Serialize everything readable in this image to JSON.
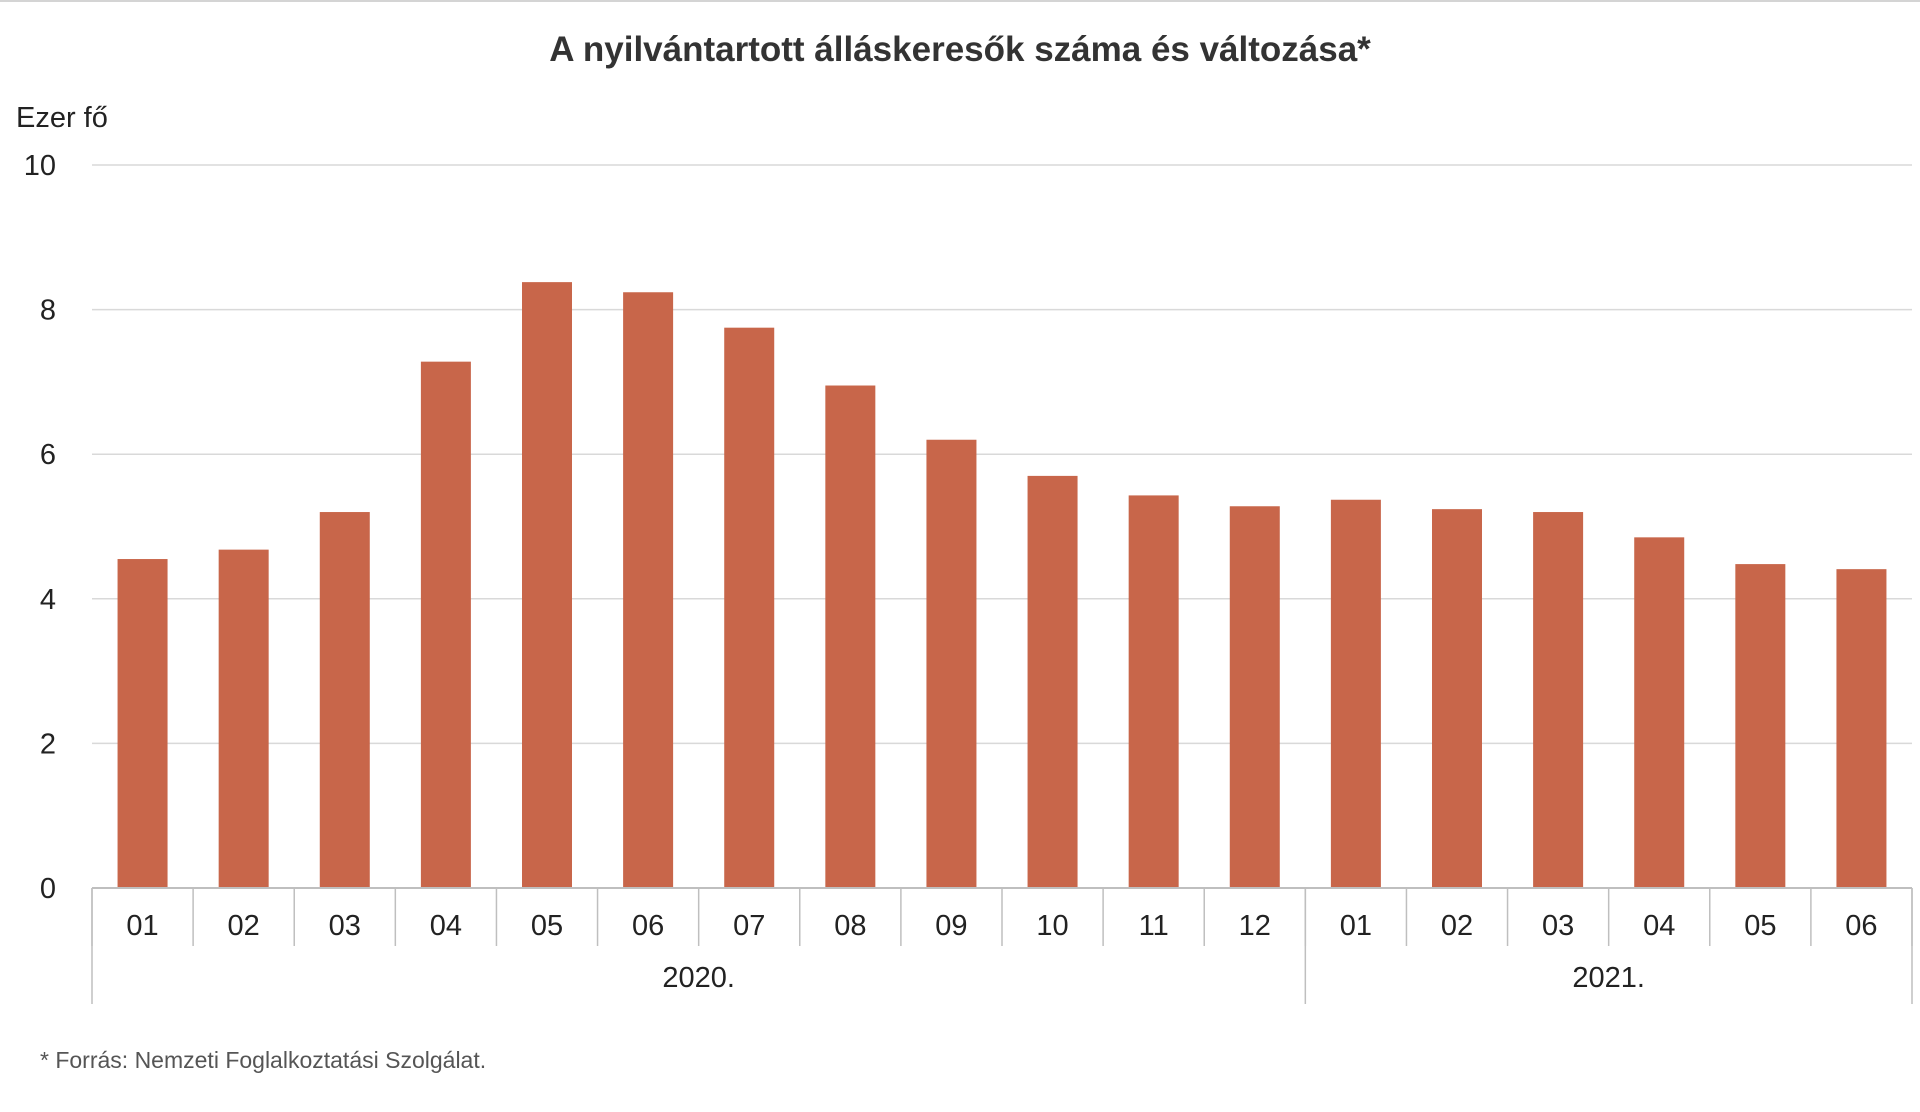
{
  "chart_data": {
    "type": "bar",
    "title": "A nyilvántartott álláskeresők száma és változása*",
    "ylabel": "Ezer fő",
    "xlabel": "",
    "ylim": [
      0,
      10
    ],
    "yticks": [
      "0",
      "2",
      "4",
      "6",
      "8",
      "10"
    ],
    "grid": true,
    "legend": "none",
    "bar_color": "#c8664a",
    "categories": [
      "01",
      "02",
      "03",
      "04",
      "05",
      "06",
      "07",
      "08",
      "09",
      "10",
      "11",
      "12",
      "01",
      "02",
      "03",
      "04",
      "05",
      "06"
    ],
    "groups": [
      {
        "label": "2020.",
        "count": 12
      },
      {
        "label": "2021.",
        "count": 6
      }
    ],
    "values": [
      4.55,
      4.68,
      5.2,
      7.28,
      8.38,
      8.24,
      7.75,
      6.95,
      6.2,
      5.7,
      5.43,
      5.28,
      5.37,
      5.24,
      5.2,
      4.85,
      4.48,
      4.41
    ]
  },
  "footnote": "* Forrás: Nemzeti Foglalkoztatási Szolgálat."
}
